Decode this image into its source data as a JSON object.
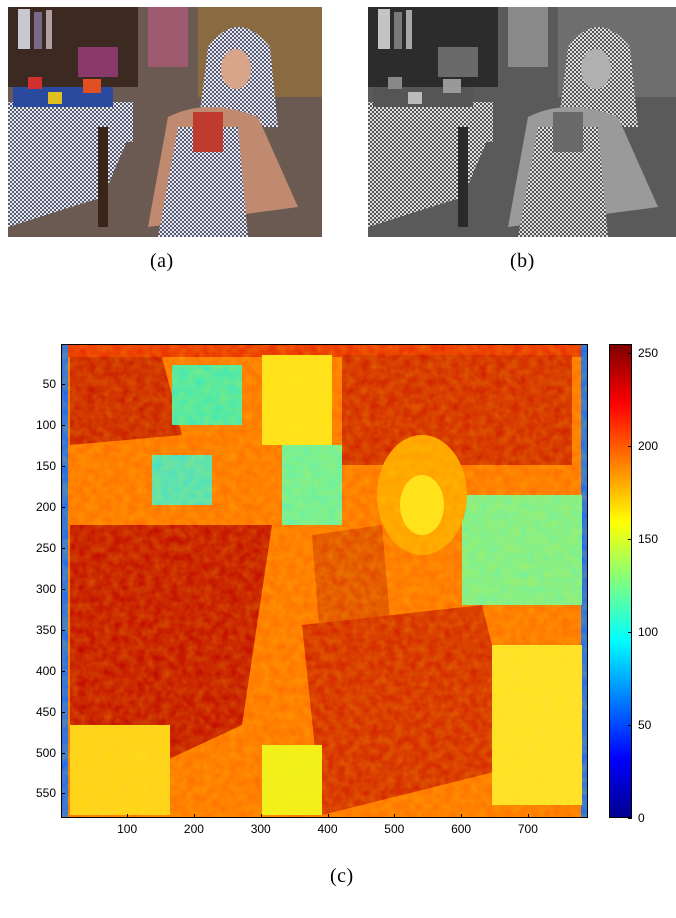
{
  "figure": {
    "panel_a": {
      "caption": "(a)"
    },
    "panel_b": {
      "caption": "(b)"
    },
    "panel_c": {
      "caption": "(c)"
    }
  },
  "chart_data": {
    "type": "heatmap",
    "colormap": "jet",
    "y_ticks": [
      "50",
      "100",
      "150",
      "200",
      "250",
      "300",
      "350",
      "400",
      "450",
      "500",
      "550"
    ],
    "x_ticks": [
      "100",
      "200",
      "300",
      "400",
      "500",
      "600",
      "700"
    ],
    "colorbar_ticks": [
      "0",
      "50",
      "100",
      "150",
      "200",
      "250"
    ],
    "colorbar_range": [
      0,
      255
    ],
    "xlim": [
      1,
      790
    ],
    "ylim": [
      1,
      580
    ],
    "y_reversed": true,
    "grid": false,
    "colorbar_position": "right"
  }
}
